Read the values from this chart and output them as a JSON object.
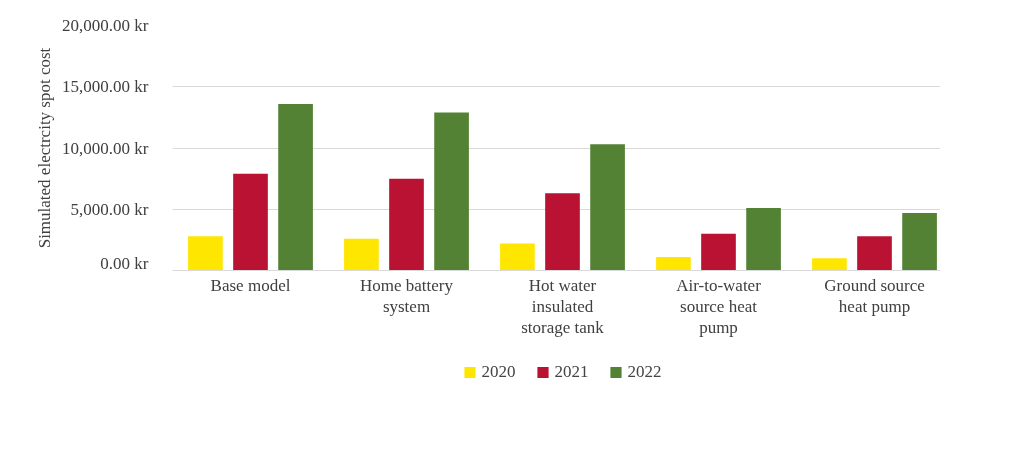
{
  "chart_data": {
    "type": "bar",
    "ylabel": "Simulated electrcity spot cost",
    "categories": [
      "Base model",
      "Home battery system",
      "Hot water insulated storage tank",
      "Air-to-water source heat pump",
      "Ground source heat pump"
    ],
    "series": [
      {
        "name": "2020",
        "color": "#ffe600",
        "values": [
          2800,
          2600,
          2200,
          1100,
          1000
        ]
      },
      {
        "name": "2021",
        "color": "#ba1233",
        "values": [
          7900,
          7500,
          6300,
          3000,
          2800
        ]
      },
      {
        "name": "2022",
        "color": "#548235",
        "values": [
          13600,
          12900,
          10300,
          5100,
          4700
        ]
      }
    ],
    "ylim": [
      0,
      20000
    ],
    "yticks": [
      {
        "value": 0,
        "label": "0.00 kr"
      },
      {
        "value": 5000,
        "label": "5,000.00 kr"
      },
      {
        "value": 10000,
        "label": "10,000.00 kr"
      },
      {
        "value": 15000,
        "label": "15,000.00 kr"
      },
      {
        "value": 20000,
        "label": "20,000.00 kr"
      }
    ],
    "grid": "y",
    "legend": "bottom"
  }
}
